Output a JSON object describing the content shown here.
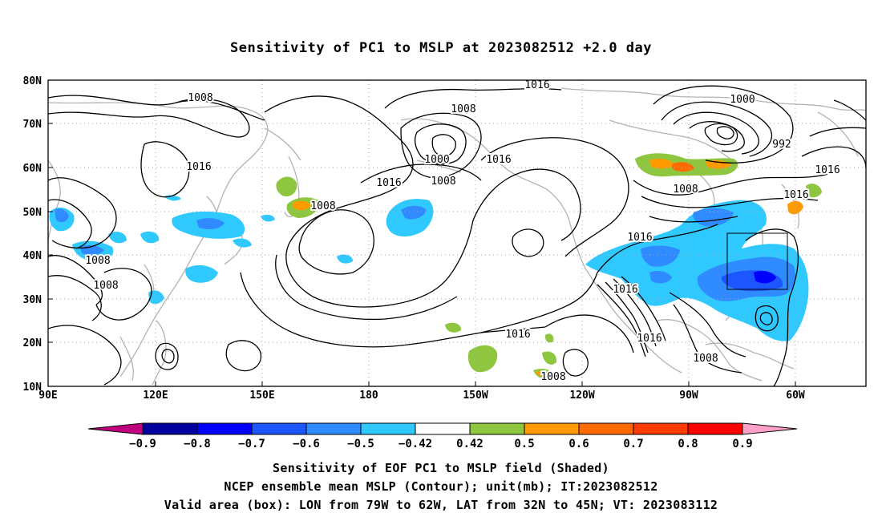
{
  "title": "Sensitivity of PC1 to MSLP at 2023082512 +2.0 day",
  "map": {
    "lon_labels": [
      "90E",
      "120E",
      "150E",
      "180",
      "150W",
      "120W",
      "90W",
      "60W"
    ],
    "lat_labels": [
      "80N",
      "70N",
      "60N",
      "50N",
      "40N",
      "30N",
      "20N",
      "10N"
    ],
    "grid": true,
    "contour_labels": [
      {
        "text": "1016"
      },
      {
        "text": "1008"
      },
      {
        "text": "1008"
      },
      {
        "text": "1000"
      },
      {
        "text": "1016"
      },
      {
        "text": "1008"
      },
      {
        "text": "1016"
      },
      {
        "text": "1008"
      },
      {
        "text": "1008"
      },
      {
        "text": "1008"
      },
      {
        "text": "1000"
      },
      {
        "text": "992"
      },
      {
        "text": "1016"
      },
      {
        "text": "1008"
      },
      {
        "text": "1016"
      },
      {
        "text": "1016"
      },
      {
        "text": "1016"
      },
      {
        "text": "1016"
      },
      {
        "text": "1008"
      },
      {
        "text": "1008"
      },
      {
        "text": "1016"
      }
    ],
    "box_label": ""
  },
  "colorbar": {
    "labels": [
      "−0.9",
      "−0.8",
      "−0.7",
      "−0.6",
      "−0.5",
      "−0.42",
      "0.42",
      "0.5",
      "0.6",
      "0.7",
      "0.8",
      "0.9"
    ],
    "colors": [
      "#00009f",
      "#0000ff",
      "#1d55ff",
      "#2f8bff",
      "#2fc8ff",
      "#ffffff",
      "#8ec63f",
      "#ff9a00",
      "#ff6a00",
      "#ff3a00",
      "#ff0000"
    ],
    "end_low": "#c0007f",
    "end_high": "#ffa0c8"
  },
  "captions": {
    "line1": "Sensitivity of EOF PC1 to MSLP field (Shaded)",
    "line2": "NCEP ensemble mean MSLP (Contour); unit(mb); IT:2023082512",
    "line3": "Valid area (box): LON from 79W to 62W, LAT from 32N to 45N; VT: 2023083112"
  }
}
